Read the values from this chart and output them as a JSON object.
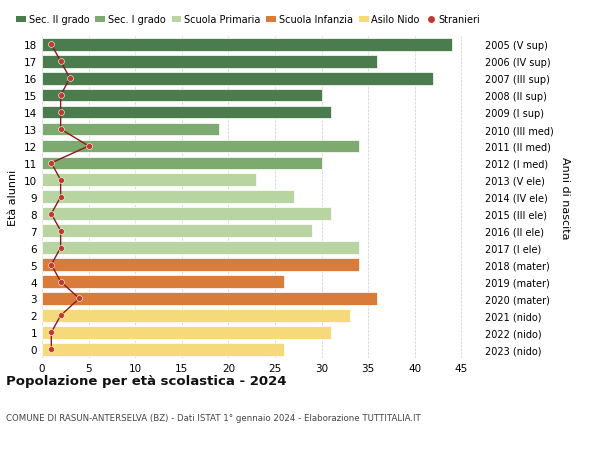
{
  "ages": [
    18,
    17,
    16,
    15,
    14,
    13,
    12,
    11,
    10,
    9,
    8,
    7,
    6,
    5,
    4,
    3,
    2,
    1,
    0
  ],
  "years": [
    "2005 (V sup)",
    "2006 (IV sup)",
    "2007 (III sup)",
    "2008 (II sup)",
    "2009 (I sup)",
    "2010 (III med)",
    "2011 (II med)",
    "2012 (I med)",
    "2013 (V ele)",
    "2014 (IV ele)",
    "2015 (III ele)",
    "2016 (II ele)",
    "2017 (I ele)",
    "2018 (mater)",
    "2019 (mater)",
    "2020 (mater)",
    "2021 (nido)",
    "2022 (nido)",
    "2023 (nido)"
  ],
  "bar_values": [
    44,
    36,
    42,
    30,
    31,
    19,
    34,
    30,
    23,
    27,
    31,
    29,
    34,
    34,
    26,
    36,
    33,
    31,
    26
  ],
  "bar_colors": [
    "#4a7c4e",
    "#4a7c4e",
    "#4a7c4e",
    "#4a7c4e",
    "#4a7c4e",
    "#7daa6e",
    "#7daa6e",
    "#7daa6e",
    "#b8d4a0",
    "#b8d4a0",
    "#b8d4a0",
    "#b8d4a0",
    "#b8d4a0",
    "#d97c3a",
    "#d97c3a",
    "#d97c3a",
    "#f5d97a",
    "#f5d97a",
    "#f5d97a"
  ],
  "stranieri_values": [
    1,
    2,
    3,
    2,
    2,
    2,
    5,
    1,
    2,
    2,
    1,
    2,
    2,
    1,
    2,
    4,
    2,
    1,
    1
  ],
  "legend_labels": [
    "Sec. II grado",
    "Sec. I grado",
    "Scuola Primaria",
    "Scuola Infanzia",
    "Asilo Nido",
    "Stranieri"
  ],
  "legend_colors": [
    "#4a7c4e",
    "#7daa6e",
    "#b8d4a0",
    "#d97c3a",
    "#f5d97a",
    "#c0392b"
  ],
  "ylabel": "Età alunni",
  "ylabel_right": "Anni di nascita",
  "title": "Popolazione per età scolastica - 2024",
  "subtitle": "COMUNE DI RASUN-ANTERSELVA (BZ) - Dati ISTAT 1° gennaio 2024 - Elaborazione TUTTITALIA.IT",
  "xlim": [
    0,
    47
  ],
  "xticks": [
    0,
    5,
    10,
    15,
    20,
    25,
    30,
    35,
    40,
    45
  ],
  "background_color": "#ffffff",
  "grid_color": "#cccccc",
  "bar_height": 0.75,
  "stranieri_color": "#c0392b",
  "line_color": "#8b1a1a"
}
